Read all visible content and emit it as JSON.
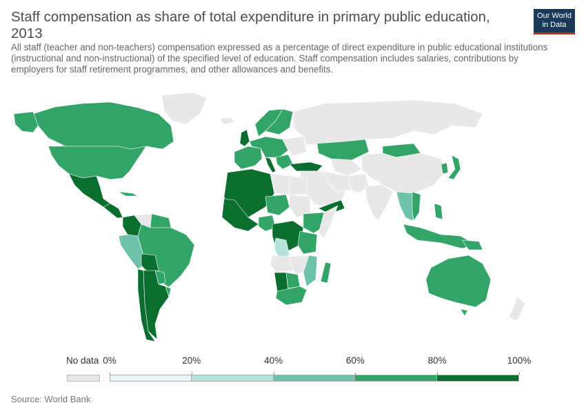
{
  "header": {
    "title": "Staff compensation as share of total expenditure in primary public education, 2013",
    "subtitle": "All staff (teacher and non-teachers) compensation expressed as a percentage of direct expenditure in public educational institutions (instructional and non-instructional) of the specified level of education. Staff compensation includes salaries, contributions by employers for staff retirement programmes, and other allowances and benefits.",
    "logo_line1": "Our World",
    "logo_line2": "in Data"
  },
  "legend": {
    "nodata_label": "No data",
    "nodata_color": "#e8e8e8",
    "ticks": [
      "0%",
      "20%",
      "40%",
      "60%",
      "80%",
      "100%"
    ],
    "bins": [
      {
        "from": 0,
        "to": 20,
        "color": "#eaf7f6"
      },
      {
        "from": 20,
        "to": 40,
        "color": "#b5e3dd"
      },
      {
        "from": 40,
        "to": 60,
        "color": "#6cc3a9"
      },
      {
        "from": 60,
        "to": 80,
        "color": "#32a467"
      },
      {
        "from": 80,
        "to": 100,
        "color": "#0a6e2f"
      }
    ]
  },
  "footer": {
    "source": "Source: World Bank"
  },
  "map": {
    "ocean_color": "#ffffff",
    "border_color": "#ffffff",
    "nodata_fill": "#e8e8e8"
  }
}
